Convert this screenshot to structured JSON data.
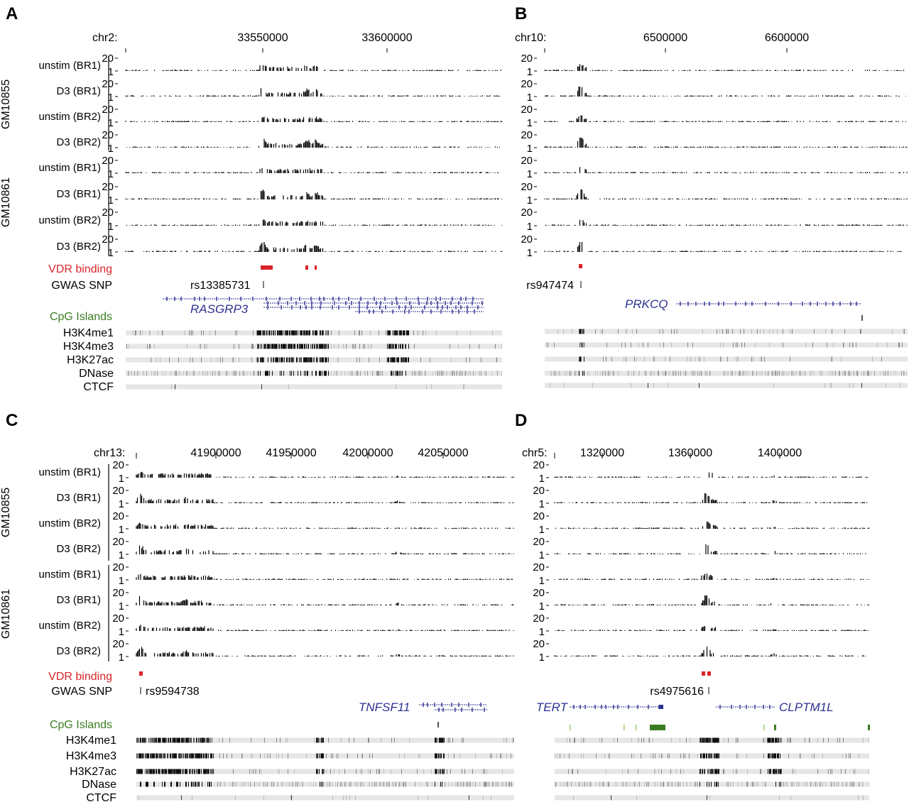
{
  "panels": [
    {
      "letter": "A",
      "chrom": "chr2:",
      "ticks": [
        "33550000",
        "33600000"
      ],
      "cells": [
        {
          "name": "GM10855",
          "tracks": [
            "unstim (BR1)",
            "D3 (BR1)",
            "unstim (BR2)",
            "D3 (BR2)"
          ]
        },
        {
          "name": "GM10861",
          "tracks": [
            "unstim (BR1)",
            "D3 (BR1)",
            "unstim (BR2)",
            "D3 (BR2)"
          ]
        }
      ],
      "scale": [
        "20",
        "1"
      ],
      "vdr_label": "VDR binding",
      "gwas_label": "GWAS SNP",
      "snp": "rs13385731",
      "genes": [
        "RASGRP3"
      ],
      "cpg_label": "CpG Islands",
      "marks": [
        "H3K4me1",
        "H3K4me3",
        "H3K27ac",
        "DNase",
        "CTCF"
      ]
    },
    {
      "letter": "B",
      "chrom": "chr10:",
      "ticks": [
        "6500000",
        "6600000"
      ],
      "cells": [
        {
          "name": "",
          "tracks": [
            "",
            "",
            "",
            ""
          ]
        },
        {
          "name": "",
          "tracks": [
            "",
            "",
            "",
            ""
          ]
        }
      ],
      "scale": [
        "20",
        "1"
      ],
      "vdr_label": "",
      "gwas_label": "",
      "snp": "rs947474",
      "genes": [
        "PRKCQ"
      ],
      "cpg_label": "",
      "marks": [
        "",
        "",
        "",
        "",
        ""
      ]
    },
    {
      "letter": "C",
      "chrom": "chr13:",
      "ticks": [
        "41900000",
        "41950000",
        "42000000",
        "42050000"
      ],
      "cells": [
        {
          "name": "GM10855",
          "tracks": [
            "unstim (BR1)",
            "D3 (BR1)",
            "unstim (BR2)",
            "D3 (BR2)"
          ]
        },
        {
          "name": "GM10861",
          "tracks": [
            "unstim (BR1)",
            "D3 (BR1)",
            "unstim (BR2)",
            "D3 (BR2)"
          ]
        }
      ],
      "scale": [
        "20",
        "1"
      ],
      "vdr_label": "VDR binding",
      "gwas_label": "GWAS SNP",
      "snp": "rs9594738",
      "genes": [
        "TNFSF11"
      ],
      "cpg_label": "CpG Islands",
      "marks": [
        "H3K4me1",
        "H3K4me3",
        "H3K27ac",
        "DNase",
        "CTCF"
      ]
    },
    {
      "letter": "D",
      "chrom": "chr5:",
      "ticks": [
        "1320000",
        "1360000",
        "1400000"
      ],
      "cells": [
        {
          "name": "",
          "tracks": [
            "",
            "",
            "",
            ""
          ]
        },
        {
          "name": "",
          "tracks": [
            "",
            "",
            "",
            ""
          ]
        }
      ],
      "scale": [
        "20",
        "1"
      ],
      "vdr_label": "",
      "gwas_label": "",
      "snp": "rs4975616",
      "genes": [
        "TERT",
        "CLPTM1L"
      ],
      "cpg_label": "",
      "marks": [
        "",
        "",
        "",
        "",
        ""
      ]
    }
  ],
  "colors": {
    "vdr": "#d9252b",
    "gene": "#2e3192",
    "cpg": "#3a7d22",
    "signal": "#000000",
    "chromatin_base": "#e6e6e6"
  }
}
